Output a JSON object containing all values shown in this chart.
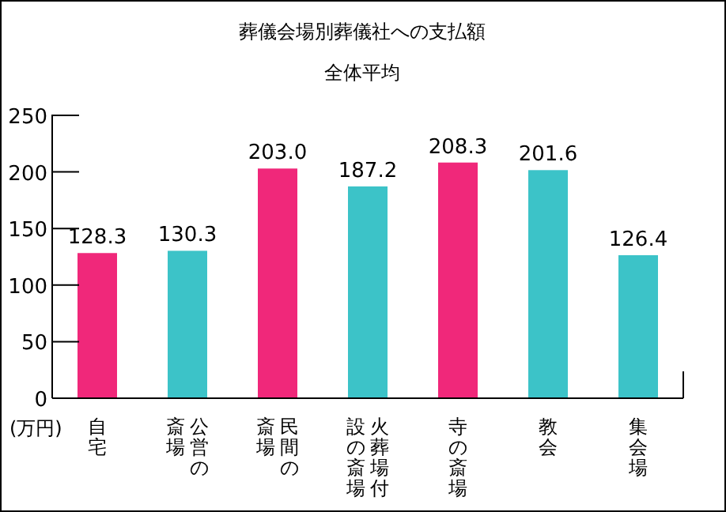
{
  "chart_data": {
    "type": "bar",
    "title": "葬儀会場別葬儀社への支払額",
    "subtitle": "全体平均",
    "ylabel": "(万円)",
    "categories": [
      "自宅",
      "公営の斎場",
      "民間の斎場",
      "火葬場付設の斎場",
      "寺の斎場",
      "教会",
      "集会場"
    ],
    "values": [
      128.3,
      130.3,
      203.0,
      187.2,
      208.3,
      201.6,
      126.4
    ],
    "colors": [
      "#f0287a",
      "#3cc3c8",
      "#f0287a",
      "#3cc3c8",
      "#f0287a",
      "#3cc3c8",
      "#3cc3c8"
    ],
    "value_labels": [
      "128.3",
      "130.3",
      "203.0",
      "187.2",
      "208.3",
      "201.6",
      "126.4"
    ],
    "ylim": [
      0,
      250
    ],
    "yticks": [
      0,
      50,
      100,
      150,
      200,
      250
    ]
  }
}
